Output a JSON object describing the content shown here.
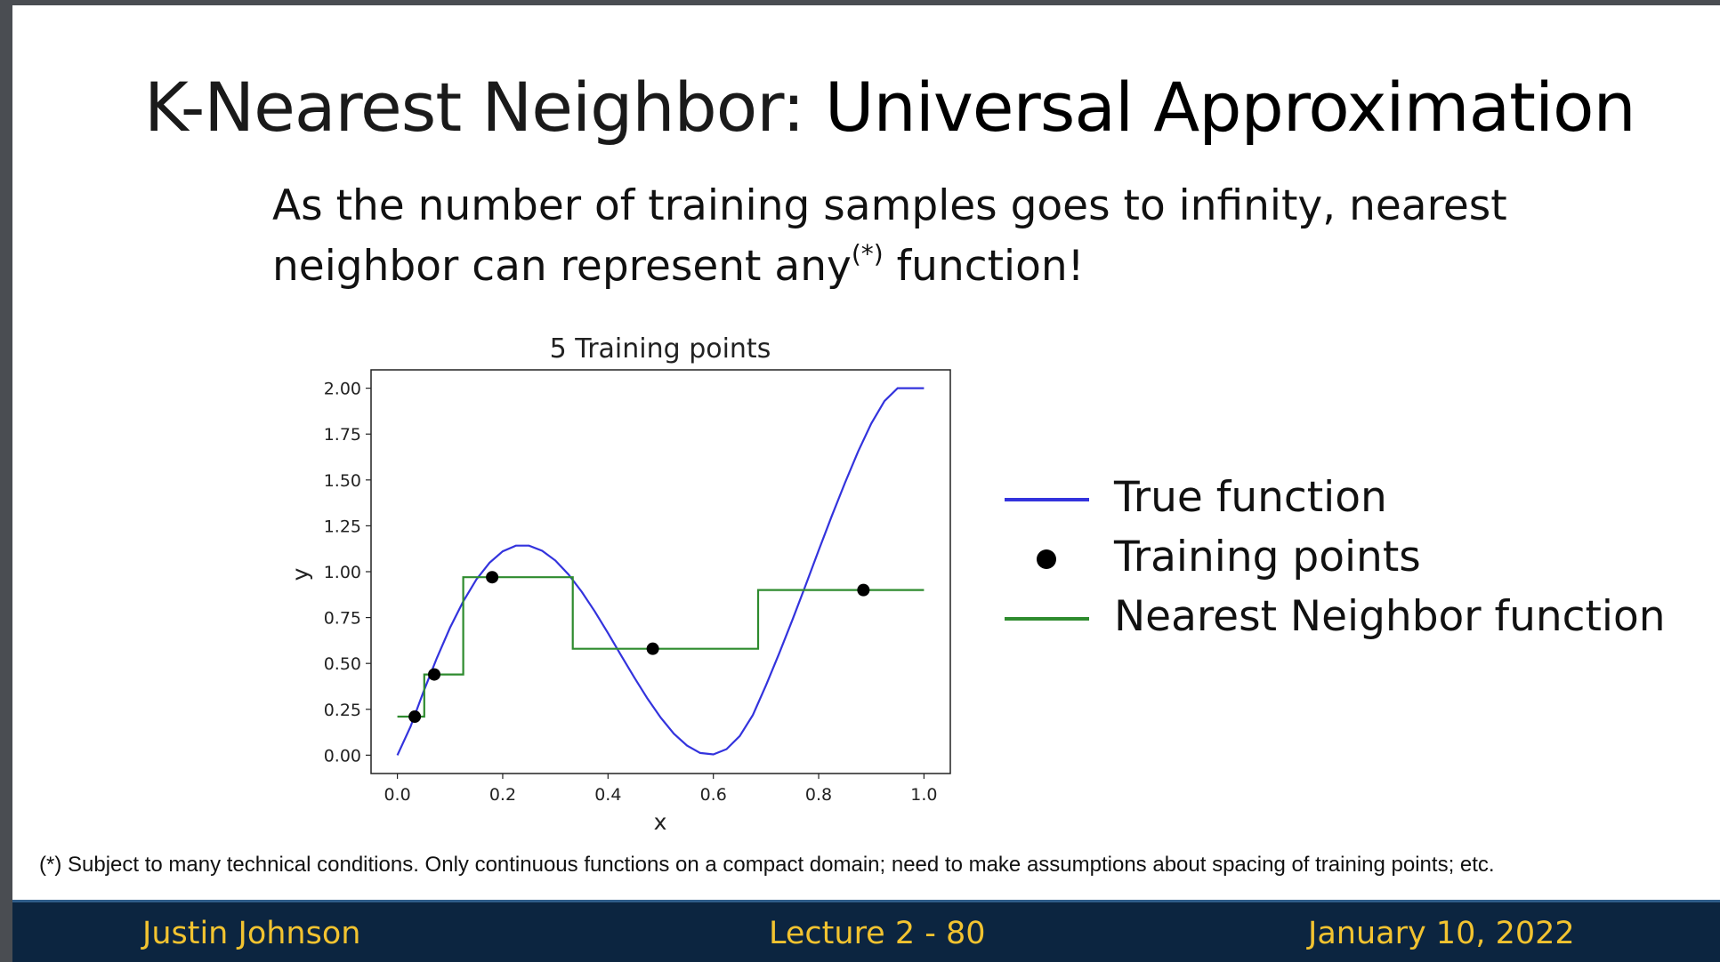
{
  "slide": {
    "title_plain": "K-Nearest Neighbor: ",
    "title_bold": "Universal Approximation",
    "subtitle_line1": "As the number of training samples goes to infinity, nearest",
    "subtitle_line2_a": "neighbor can represent any",
    "subtitle_sup": "(*)",
    "subtitle_line2_b": " function!",
    "footnote": "(*) Subject to many technical conditions. Only continuous functions on a compact domain; need to make assumptions about spacing of training points; etc."
  },
  "legend": {
    "true_function": "True function",
    "training_points": "Training points",
    "nn_function": "Nearest Neighbor function"
  },
  "footer": {
    "author": "Justin Johnson",
    "lecture": "Lecture 2 - 80",
    "date": "January 10, 2022"
  },
  "colors": {
    "true_function": "#3333dd",
    "nn_function": "#2e8b2e",
    "training_points": "#000000",
    "footer_bg": "#0c2540",
    "footer_text": "#f2c330"
  },
  "chart_data": {
    "type": "line",
    "title": "5 Training points",
    "xlabel": "x",
    "ylabel": "y",
    "xlim": [
      -0.05,
      1.05
    ],
    "ylim": [
      -0.1,
      2.1
    ],
    "xticks": [
      "0.0",
      "0.2",
      "0.4",
      "0.6",
      "0.8",
      "1.0"
    ],
    "xtick_values": [
      0.0,
      0.2,
      0.4,
      0.6,
      0.8,
      1.0
    ],
    "yticks": [
      "0.00",
      "0.25",
      "0.50",
      "0.75",
      "1.00",
      "1.25",
      "1.50",
      "1.75",
      "2.00"
    ],
    "ytick_values": [
      0.0,
      0.25,
      0.5,
      0.75,
      1.0,
      1.25,
      1.5,
      1.75,
      2.0
    ],
    "grid": false,
    "legend_position": "right",
    "series": [
      {
        "name": "True function",
        "x": [
          0.0,
          0.025,
          0.05,
          0.075,
          0.1,
          0.125,
          0.15,
          0.175,
          0.2,
          0.225,
          0.25,
          0.275,
          0.3,
          0.325,
          0.35,
          0.375,
          0.4,
          0.425,
          0.45,
          0.475,
          0.5,
          0.525,
          0.55,
          0.575,
          0.6,
          0.625,
          0.65,
          0.675,
          0.7,
          0.725,
          0.75,
          0.775,
          0.8,
          0.825,
          0.85,
          0.875,
          0.9,
          0.925,
          0.95,
          0.975,
          1.0
        ],
        "y": [
          0.0,
          0.156,
          0.349,
          0.53,
          0.695,
          0.838,
          0.958,
          1.049,
          1.111,
          1.142,
          1.142,
          1.114,
          1.061,
          0.985,
          0.891,
          0.783,
          0.665,
          0.543,
          0.423,
          0.308,
          0.205,
          0.117,
          0.052,
          0.012,
          0.004,
          0.033,
          0.104,
          0.219,
          0.381,
          0.555,
          0.737,
          0.925,
          1.116,
          1.304,
          1.484,
          1.655,
          1.808,
          1.93,
          2.0,
          2.0,
          2.0
        ]
      },
      {
        "name": "Training points",
        "x": [
          0.033,
          0.07,
          0.18,
          0.485,
          0.885
        ],
        "y": [
          0.21,
          0.44,
          0.97,
          0.58,
          0.9
        ]
      },
      {
        "name": "Nearest Neighbor function",
        "x": [
          0.0,
          0.051,
          0.051,
          0.125,
          0.125,
          0.333,
          0.333,
          0.685,
          0.685,
          1.0
        ],
        "y": [
          0.21,
          0.21,
          0.44,
          0.44,
          0.97,
          0.97,
          0.58,
          0.58,
          0.9,
          0.9
        ]
      }
    ]
  }
}
